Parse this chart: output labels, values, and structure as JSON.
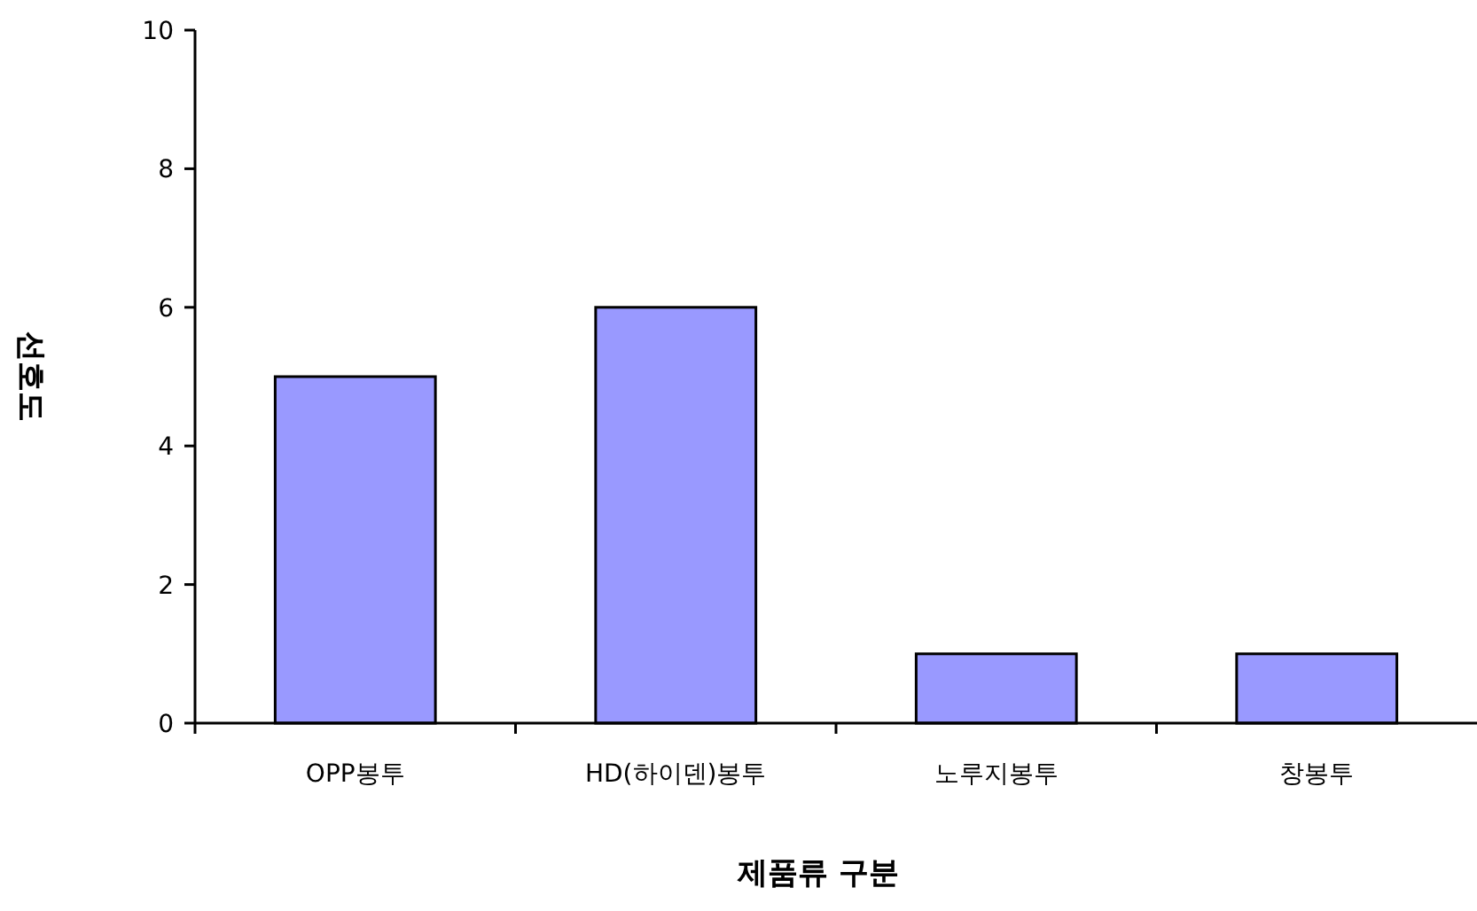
{
  "chart_data": {
    "type": "bar",
    "xlabel": "제품류 구분",
    "ylabel": "선호도",
    "categories": [
      "OPP봉투",
      "HD(하이덴)봉투",
      "노루지봉투",
      "창봉투"
    ],
    "values": [
      5,
      6,
      1,
      1
    ],
    "color": "#9999ff",
    "ylim": [
      0,
      10
    ],
    "yticks": [
      0,
      2,
      4,
      6,
      8,
      10
    ],
    "grid": false
  }
}
